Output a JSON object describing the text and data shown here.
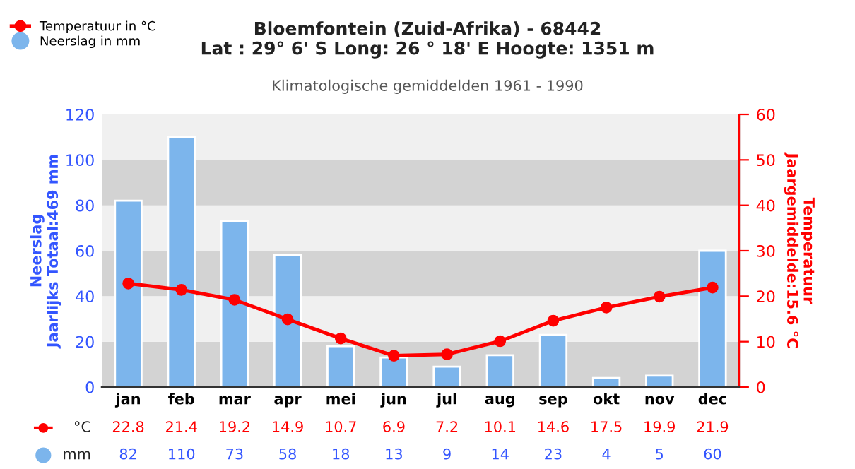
{
  "chart_data": {
    "type": "bar",
    "title": "Bloemfontein (Zuid-Afrika) - 68442\nLat : 29° 6' S Long: 26 ° 18' E Hoogte: 1351 m",
    "subtitle": "Klimatologische gemiddelden 1961 - 1990",
    "categories": [
      "jan",
      "feb",
      "mar",
      "apr",
      "mei",
      "jun",
      "jul",
      "aug",
      "sep",
      "okt",
      "nov",
      "dec"
    ],
    "series": [
      {
        "name": "Neerslag in mm",
        "color": "#7cb5ec",
        "values": [
          82,
          110,
          73,
          58,
          18,
          13,
          9,
          14,
          23,
          4,
          5,
          60
        ]
      },
      {
        "name": "Temperatuur in °C",
        "type": "line",
        "axis": "y2",
        "color": "#ff0000",
        "marker": "circle",
        "values": [
          22.8,
          21.4,
          19.2,
          14.9,
          10.7,
          6.9,
          7.2,
          10.1,
          14.6,
          17.5,
          19.9,
          21.9
        ]
      }
    ],
    "ylabel": "Neerslag\nJaarlijks Totaal:469 mm",
    "y2label": "Temperatuur\nJaargemiddelde:15.6 °C",
    "ylim": [
      0,
      120
    ],
    "yticks": [
      0,
      20,
      40,
      60,
      80,
      100,
      120
    ],
    "y2lim": [
      0,
      60
    ],
    "y2ticks": [
      0,
      10,
      20,
      30,
      40,
      50,
      60
    ],
    "bands": [
      {
        "axis": "y",
        "from": 0,
        "to": 20,
        "color": "#d3d3d3"
      },
      {
        "axis": "y",
        "from": 20,
        "to": 40,
        "color": "#f0f0f0"
      },
      {
        "axis": "y",
        "from": 40,
        "to": 60,
        "color": "#d3d3d3"
      },
      {
        "axis": "y",
        "from": 60,
        "to": 80,
        "color": "#f0f0f0"
      },
      {
        "axis": "y",
        "from": 80,
        "to": 100,
        "color": "#d3d3d3"
      },
      {
        "axis": "y",
        "from": 100,
        "to": 120,
        "color": "#f0f0f0"
      }
    ],
    "annotations": [
      "°C",
      "mm"
    ],
    "data_labels": true,
    "legend": "top left",
    "grid": false
  }
}
